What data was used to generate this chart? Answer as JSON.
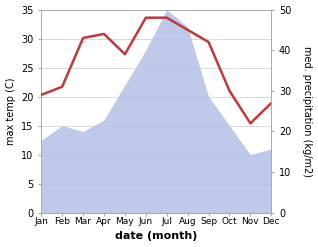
{
  "months": [
    "Jan",
    "Feb",
    "Mar",
    "Apr",
    "May",
    "Jun",
    "Jul",
    "Aug",
    "Sep",
    "Oct",
    "Nov",
    "Dec"
  ],
  "temperature": [
    12.5,
    15.0,
    14.0,
    16.0,
    22.0,
    28.0,
    35.0,
    32.0,
    20.0,
    15.0,
    10.0,
    11.0
  ],
  "precipitation": [
    29.0,
    31.0,
    43.0,
    44.0,
    39.0,
    48.0,
    48.0,
    45.0,
    42.0,
    30.0,
    22.0,
    27.0
  ],
  "temp_ylim": [
    0,
    35
  ],
  "precip_ylim": [
    0,
    50
  ],
  "temp_fill_color": "#b8c4e8",
  "precip_color": "#c0393b",
  "xlabel": "date (month)",
  "ylabel_left": "max temp (C)",
  "ylabel_right": "med. precipitation (kg/m2)",
  "bg_color": "#ffffff",
  "grid_color": "#cccccc",
  "spine_color": "#aaaaaa",
  "yticks_left": [
    0,
    5,
    10,
    15,
    20,
    25,
    30,
    35
  ],
  "yticks_right": [
    0,
    10,
    20,
    30,
    40,
    50
  ]
}
